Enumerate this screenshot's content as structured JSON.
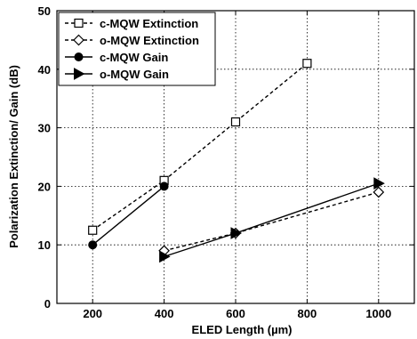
{
  "chart_data": {
    "type": "line",
    "xlabel": "ELED Length (µm)",
    "ylabel": "Polarization Extinction/ Gain (dB)",
    "xlim": [
      100,
      1100
    ],
    "ylim": [
      0,
      50
    ],
    "xticks": [
      200,
      400,
      600,
      800,
      1000
    ],
    "yticks": [
      0,
      10,
      20,
      30,
      40,
      50
    ],
    "grid": true,
    "legend_position": "top-left",
    "series": [
      {
        "name": "c-MQW Extinction",
        "marker": "open-square",
        "line_style": "dashed",
        "points": [
          {
            "x": 200,
            "y": 12.5
          },
          {
            "x": 400,
            "y": 21
          },
          {
            "x": 600,
            "y": 31
          },
          {
            "x": 800,
            "y": 41
          }
        ]
      },
      {
        "name": "o-MQW Extinction",
        "marker": "open-diamond",
        "line_style": "dashed",
        "points": [
          {
            "x": 400,
            "y": 9
          },
          {
            "x": 600,
            "y": 12
          },
          {
            "x": 1000,
            "y": 19
          }
        ]
      },
      {
        "name": "c-MQW Gain",
        "marker": "filled-circle",
        "line_style": "solid",
        "points": [
          {
            "x": 200,
            "y": 10
          },
          {
            "x": 400,
            "y": 20
          }
        ]
      },
      {
        "name": "o-MQW Gain",
        "marker": "filled-triangle-right",
        "line_style": "solid",
        "points": [
          {
            "x": 400,
            "y": 8
          },
          {
            "x": 600,
            "y": 12
          },
          {
            "x": 1000,
            "y": 20.5
          }
        ]
      }
    ]
  }
}
